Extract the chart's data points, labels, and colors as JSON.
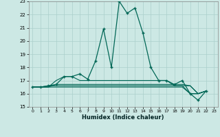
{
  "xlabel": "Humidex (Indice chaleur)",
  "xlim": [
    -0.5,
    23.5
  ],
  "ylim": [
    15,
    23
  ],
  "yticks": [
    15,
    16,
    17,
    18,
    19,
    20,
    21,
    22,
    23
  ],
  "xticks": [
    0,
    1,
    2,
    3,
    4,
    5,
    6,
    7,
    8,
    9,
    10,
    11,
    12,
    13,
    14,
    15,
    16,
    17,
    18,
    19,
    20,
    21,
    22,
    23
  ],
  "bg_color": "#cce8e4",
  "grid_color": "#aacfcb",
  "line_color": "#006655",
  "main_line": [
    16.5,
    16.5,
    16.6,
    16.7,
    17.3,
    17.3,
    17.5,
    17.1,
    18.5,
    20.9,
    18.0,
    23.0,
    22.1,
    22.5,
    20.6,
    18.0,
    17.0,
    17.0,
    16.7,
    17.0,
    16.0,
    15.5,
    16.2
  ],
  "other_lines": [
    [
      16.5,
      16.5,
      16.6,
      16.6,
      16.6,
      16.6,
      16.6,
      16.6,
      16.6,
      16.6,
      16.6,
      16.6,
      16.6,
      16.6,
      16.6,
      16.6,
      16.6,
      16.6,
      16.6,
      16.6,
      16.6,
      16.0,
      16.2
    ],
    [
      16.5,
      16.5,
      16.5,
      16.7,
      16.7,
      16.7,
      16.7,
      16.7,
      16.7,
      16.7,
      16.7,
      16.7,
      16.7,
      16.7,
      16.7,
      16.7,
      16.7,
      16.7,
      16.7,
      16.7,
      16.6,
      16.0,
      16.2
    ],
    [
      16.5,
      16.5,
      16.5,
      17.0,
      17.3,
      17.3,
      17.0,
      17.0,
      17.0,
      17.0,
      17.0,
      17.0,
      17.0,
      17.0,
      17.0,
      17.0,
      17.0,
      17.0,
      16.6,
      16.6,
      16.0,
      16.0,
      16.2
    ],
    [
      16.5,
      16.5,
      16.5,
      16.5,
      16.5,
      16.5,
      16.5,
      16.5,
      16.5,
      16.5,
      16.5,
      16.5,
      16.5,
      16.5,
      16.5,
      16.5,
      16.5,
      16.5,
      16.5,
      16.5,
      16.0,
      16.0,
      16.2
    ]
  ]
}
